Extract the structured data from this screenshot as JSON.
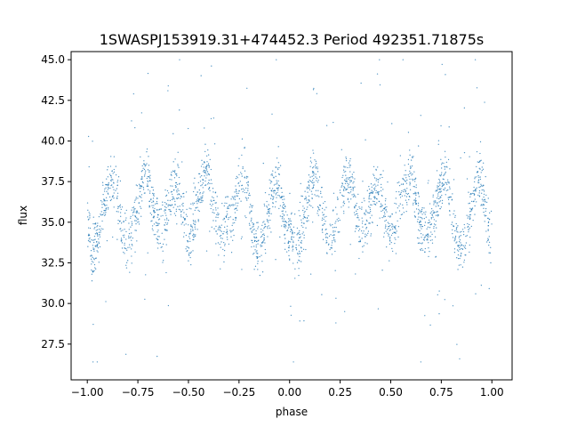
{
  "chart_data": {
    "type": "scatter",
    "title": "1SWASPJ153919.31+474452.3 Period 492351.71875s",
    "xlabel": "phase",
    "ylabel": "flux",
    "xlim": [
      -1.08,
      1.1
    ],
    "ylim": [
      25.3,
      45.5
    ],
    "x_ticks": [
      -1.0,
      -0.75,
      -0.5,
      -0.25,
      0.0,
      0.25,
      0.5,
      0.75,
      1.0
    ],
    "x_tick_labels": [
      "−1.00",
      "−0.75",
      "−0.50",
      "−0.25",
      "0.00",
      "0.25",
      "0.50",
      "0.75",
      "1.00"
    ],
    "y_ticks": [
      27.5,
      30.0,
      32.5,
      35.0,
      37.5,
      40.0,
      42.5,
      45.0
    ],
    "y_tick_labels": [
      "27.5",
      "30.0",
      "32.5",
      "35.0",
      "37.5",
      "40.0",
      "42.5",
      "45.0"
    ],
    "grid": false,
    "marker_color": "#1f77b4",
    "phase_range": [
      -1.0,
      1.0
    ],
    "mean_flux_profile": {
      "x": [
        -1.0,
        -0.975,
        -0.95,
        -0.925,
        -0.9,
        -0.875,
        -0.85,
        -0.825,
        -0.8,
        -0.775,
        -0.75,
        -0.725,
        -0.7,
        -0.675,
        -0.65,
        -0.625,
        -0.6,
        -0.575,
        -0.55,
        -0.525,
        -0.5,
        -0.475,
        -0.45,
        -0.425,
        -0.4,
        -0.375,
        -0.35,
        -0.325,
        -0.3,
        -0.275,
        -0.25,
        -0.225,
        -0.2,
        -0.175,
        -0.15,
        -0.125,
        -0.1,
        -0.075,
        -0.05,
        -0.025,
        0.0
      ],
      "y": [
        35.5,
        33.0,
        33.8,
        35.5,
        37.0,
        38.0,
        36.5,
        34.5,
        33.8,
        34.5,
        36.0,
        37.5,
        37.8,
        36.0,
        34.5,
        34.8,
        36.0,
        37.0,
        37.0,
        35.5,
        34.0,
        35.0,
        36.5,
        37.8,
        38.0,
        36.0,
        34.5,
        34.2,
        35.0,
        36.0,
        37.5,
        38.0,
        36.0,
        34.0,
        33.2,
        34.5,
        36.0,
        37.5,
        37.5,
        35.0,
        33.5
      ]
    }
  }
}
